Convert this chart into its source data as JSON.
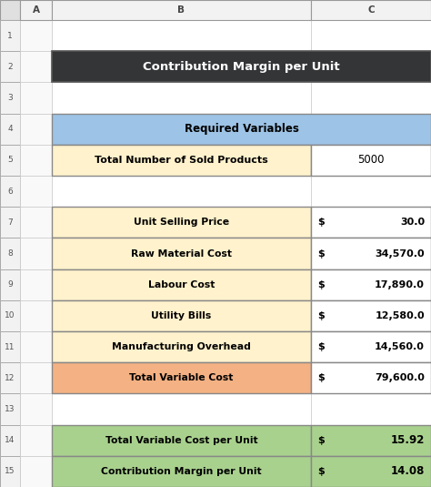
{
  "title": "Contribution Margin per Unit",
  "title_bg": "#333537",
  "title_color": "#ffffff",
  "col_header_text": "Required Variables",
  "col_header_bg": "#9dc3e6",
  "col_header_color": "#000000",
  "req_var_label": "Total Number of Sold Products",
  "req_var_value": "5000",
  "req_var_label_bg": "#fff2cc",
  "req_var_value_bg": "#ffffff",
  "items": [
    {
      "label": "Unit Selling Price",
      "dollar": "$",
      "value": "30.0",
      "label_bg": "#fff2cc",
      "value_bg": "#ffffff"
    },
    {
      "label": "Raw Material Cost",
      "dollar": "$",
      "value": "34,570.0",
      "label_bg": "#fff2cc",
      "value_bg": "#ffffff"
    },
    {
      "label": "Labour Cost",
      "dollar": "$",
      "value": "17,890.0",
      "label_bg": "#fff2cc",
      "value_bg": "#ffffff"
    },
    {
      "label": "Utility Bills",
      "dollar": "$",
      "value": "12,580.0",
      "label_bg": "#fff2cc",
      "value_bg": "#ffffff"
    },
    {
      "label": "Manufacturing Overhead",
      "dollar": "$",
      "value": "14,560.0",
      "label_bg": "#fff2cc",
      "value_bg": "#ffffff"
    },
    {
      "label": "Total Variable Cost",
      "dollar": "$",
      "value": "79,600.0",
      "label_bg": "#f4b183",
      "value_bg": "#ffffff"
    }
  ],
  "summary": [
    {
      "label": "Total Variable Cost per Unit",
      "dollar": "$",
      "value": "15.92",
      "bg": "#a9d18e"
    },
    {
      "label": "Contribution Margin per Unit",
      "dollar": "$",
      "value": "14.08",
      "bg": "#a9d18e"
    }
  ],
  "corner_bg": "#e0e0e0",
  "rownum_bg": "#f2f2f2",
  "colhdr_bg": "#f2f2f2",
  "col_a_bg": "#f9f9f9",
  "empty_bg": "#ffffff",
  "border_color": "#b0b0b0",
  "fig_bg": "#d8d8d8"
}
